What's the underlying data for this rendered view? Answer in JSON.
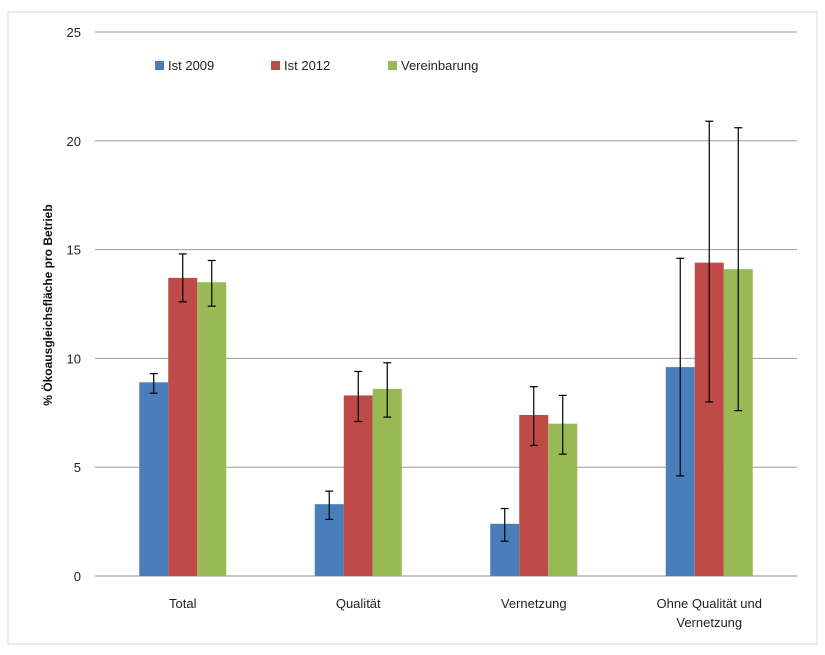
{
  "chart_data": {
    "type": "bar",
    "title": "",
    "xlabel": "",
    "ylabel": "% Ökoausgleichsfläche  pro Betrieb",
    "ylim": [
      0,
      25
    ],
    "yticks": [
      0,
      5,
      10,
      15,
      20,
      25
    ],
    "grid": true,
    "legend_position": "top-left",
    "categories": [
      [
        "Total"
      ],
      [
        "Qualität"
      ],
      [
        "Vernetzung"
      ],
      [
        "Ohne Qualität und",
        "Vernetzung"
      ]
    ],
    "series": [
      {
        "name": "Ist 2009",
        "color": "#4a7ebb",
        "values": [
          8.9,
          3.3,
          2.4,
          9.6
        ],
        "err_low": [
          8.4,
          2.6,
          1.6,
          4.6
        ],
        "err_high": [
          9.3,
          3.9,
          3.1,
          14.6
        ]
      },
      {
        "name": "Ist 2012",
        "color": "#be4b48",
        "values": [
          13.7,
          8.3,
          7.4,
          14.4
        ],
        "err_low": [
          12.6,
          7.1,
          6.0,
          8.0
        ],
        "err_high": [
          14.8,
          9.4,
          8.7,
          20.9
        ]
      },
      {
        "name": "Vereinbarung",
        "color": "#98b954",
        "values": [
          13.5,
          8.6,
          7.0,
          14.1
        ],
        "err_low": [
          12.4,
          7.3,
          5.6,
          7.6
        ],
        "err_high": [
          14.5,
          9.8,
          8.3,
          20.6
        ]
      }
    ]
  }
}
